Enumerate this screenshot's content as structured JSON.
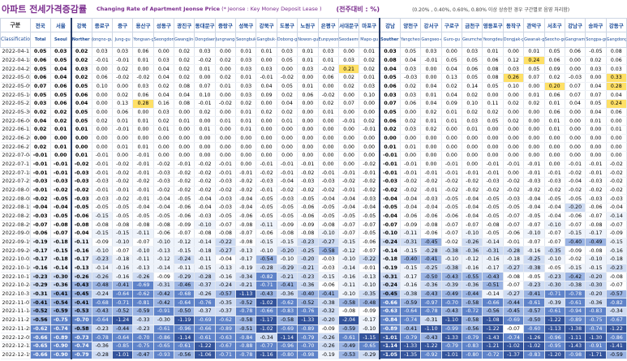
{
  "title": {
    "korean": "아파트 전세가격증감률",
    "english": "Changing Rate of Apartment Jeonse Price",
    "note": "(* Jeonse : Key Money Deposit Lease )",
    "unit": "(전주대비 : %)",
    "description": "(0.20% , 0.40%, 0.60%, 0.80% 이상 상승한 경우 구간별로 음영 처리함)"
  },
  "header": {
    "gubun": "구분",
    "classification": "Classification",
    "regions": [
      {
        "ko": "전국",
        "en": "Total"
      },
      {
        "ko": "서울",
        "en": "Seoul"
      },
      {
        "ko": "강북",
        "en": "Norther n Seoul"
      },
      {
        "ko": "종로구",
        "en": "Jongno-gu"
      },
      {
        "ko": "중구",
        "en": "Jung-gu"
      },
      {
        "ko": "용산구",
        "en": "Yongsan-gu"
      },
      {
        "ko": "성동구",
        "en": "Seongdong-gu"
      },
      {
        "ko": "광진구",
        "en": "Gwangjin-gu"
      },
      {
        "ko": "동대문구",
        "en": "Dongdaemun-gu"
      },
      {
        "ko": "중랑구",
        "en": "Jungnang-gu"
      },
      {
        "ko": "성북구",
        "en": "Seongbuk-gu"
      },
      {
        "ko": "강북구",
        "en": "Gangbuk-gu"
      },
      {
        "ko": "도봉구",
        "en": "Dobong-gu"
      },
      {
        "ko": "노원구",
        "en": "Nowon-gu"
      },
      {
        "ko": "은평구",
        "en": "Eunpyeong-gu"
      },
      {
        "ko": "서대문구",
        "en": "Seodaemun-gu"
      },
      {
        "ko": "마포구",
        "en": "Mapo-gu"
      },
      {
        "ko": "강남",
        "en": "Souther n Seoul"
      },
      {
        "ko": "양천구",
        "en": "Yangcheon-gu"
      },
      {
        "ko": "강서구",
        "en": "Gangseo-gu"
      },
      {
        "ko": "구로구",
        "en": "Guro-gu"
      },
      {
        "ko": "금천구",
        "en": "Geumcheon-gu"
      },
      {
        "ko": "영등포구",
        "en": "Yeongdeungpo-gu"
      },
      {
        "ko": "동작구",
        "en": "Dongjak-gu"
      },
      {
        "ko": "관악구",
        "en": "Gwanak-gu"
      },
      {
        "ko": "서초구",
        "en": "Seocho-gu"
      },
      {
        "ko": "강남구",
        "en": "Gangnam-gu"
      },
      {
        "ko": "송파구",
        "en": "Songpa-gu"
      },
      {
        "ko": "강동구",
        "en": "Gangdong-gu"
      }
    ]
  },
  "rows": [
    {
      "date": "2022-04-11",
      "values": [
        0.05,
        0.03,
        0.02,
        0.03,
        0.03,
        0.06,
        0.0,
        0.02,
        0.03,
        0.0,
        0.01,
        0.01,
        0.03,
        0.01,
        0.03,
        0.0,
        0.01,
        0.03,
        0.05,
        0.03,
        0.0,
        0.03,
        0.01,
        0.0,
        0.01,
        0.05,
        0.06,
        -0.05,
        0.08
      ]
    },
    {
      "date": "2022-04-18",
      "values": [
        0.06,
        0.05,
        0.02,
        -0.01,
        -0.01,
        0.01,
        0.03,
        0.02,
        -0.02,
        0.02,
        0.03,
        0.0,
        0.05,
        0.01,
        0.01,
        0.03,
        0.02,
        0.08,
        0.04,
        -0.01,
        0.05,
        0.05,
        0.06,
        0.12,
        0.24,
        0.06,
        0.0,
        0.02,
        0.06
      ]
    },
    {
      "date": "2022-04-25",
      "values": [
        0.05,
        0.04,
        0.03,
        0.0,
        0.02,
        0.0,
        0.04,
        0.02,
        0.01,
        0.0,
        0.03,
        0.03,
        0.0,
        0.03,
        -0.02,
        0.21,
        0.02,
        0.04,
        0.03,
        0.0,
        0.04,
        0.06,
        0.08,
        0.03,
        0.05,
        0.09,
        0.0,
        0.03,
        0.03
      ]
    },
    {
      "date": "2022-05-02",
      "values": [
        0.06,
        0.04,
        0.02,
        0.06,
        -0.02,
        -0.02,
        0.04,
        0.02,
        0.0,
        0.02,
        0.01,
        -0.01,
        -0.02,
        0.0,
        0.06,
        0.02,
        0.01,
        0.05,
        -0.03,
        0.0,
        0.13,
        0.05,
        0.08,
        0.26,
        0.07,
        0.02,
        -0.03,
        0.0,
        0.33
      ]
    },
    {
      "date": "2022-05-09",
      "values": [
        0.07,
        0.06,
        0.05,
        0.1,
        0.0,
        0.03,
        0.02,
        0.08,
        0.07,
        0.01,
        0.03,
        0.04,
        0.05,
        0.01,
        0.0,
        0.02,
        0.03,
        0.06,
        0.02,
        0.04,
        0.02,
        0.14,
        0.05,
        0.1,
        0.0,
        0.2,
        0.07,
        0.04,
        0.28
      ]
    },
    {
      "date": "2022-05-16",
      "values": [
        0.05,
        0.05,
        0.06,
        0.0,
        0.02,
        0.06,
        0.04,
        0.04,
        0.1,
        0.0,
        0.03,
        0.09,
        0.02,
        0.06,
        -0.02,
        0.0,
        0.1,
        0.03,
        0.03,
        0.01,
        0.04,
        0.02,
        0.0,
        0.0,
        0.01,
        0.06,
        0.07,
        0.07,
        0.04
      ]
    },
    {
      "date": "2022-05-23",
      "values": [
        0.03,
        0.06,
        0.04,
        0.0,
        0.13,
        0.28,
        0.16,
        0.08,
        -0.01,
        -0.02,
        0.02,
        0.0,
        0.04,
        0.0,
        0.02,
        0.07,
        0.0,
        0.07,
        0.06,
        0.04,
        0.09,
        0.1,
        0.11,
        0.02,
        0.02,
        0.01,
        0.04,
        0.05,
        0.24
      ]
    },
    {
      "date": "2022-05-30",
      "values": [
        0.02,
        0.02,
        0.05,
        0.0,
        0.06,
        0.0,
        0.03,
        0.0,
        0.02,
        0.0,
        0.01,
        0.02,
        0.02,
        0.0,
        0.01,
        0.0,
        0.0,
        0.05,
        0.0,
        0.02,
        0.01,
        0.02,
        0.02,
        0.0,
        0.0,
        0.06,
        0.0,
        0.04,
        0.06
      ]
    },
    {
      "date": "2022-06-06",
      "values": [
        0.04,
        0.02,
        0.05,
        0.02,
        0.01,
        0.01,
        0.02,
        0.01,
        0.0,
        0.01,
        0.01,
        0.0,
        0.01,
        0.0,
        0.0,
        -0.01,
        0.02,
        0.06,
        0.02,
        0.01,
        0.01,
        0.03,
        0.05,
        0.02,
        0.0,
        0.01,
        0.0,
        0.01,
        0.0
      ]
    },
    {
      "date": "2022-06-13",
      "values": [
        0.02,
        0.01,
        0.01,
        0.0,
        -0.01,
        0.0,
        0.01,
        0.0,
        0.01,
        0.0,
        0.01,
        0.0,
        0.0,
        0.0,
        0.0,
        0.0,
        -0.01,
        0.02,
        0.03,
        0.02,
        0.0,
        0.01,
        0.0,
        0.0,
        0.0,
        0.01,
        0.0,
        0.0,
        0.01
      ]
    },
    {
      "date": "2022-06-20",
      "values": [
        0.0,
        0.0,
        0.0,
        0.0,
        0.0,
        0.0,
        0.0,
        0.0,
        0.0,
        0.0,
        0.0,
        0.0,
        0.0,
        0.0,
        0.0,
        0.0,
        0.0,
        0.0,
        0.0,
        0.0,
        0.0,
        0.0,
        0.0,
        0.0,
        0.0,
        0.0,
        0.0,
        0.0,
        0.0
      ]
    },
    {
      "date": "2022-06-27",
      "values": [
        0.02,
        0.01,
        0.0,
        0.0,
        0.01,
        0.01,
        0.0,
        0.0,
        0.0,
        0.0,
        0.0,
        0.0,
        0.0,
        0.0,
        0.0,
        0.0,
        0.0,
        0.01,
        0.01,
        0.0,
        0.0,
        0.0,
        0.0,
        0.0,
        0.0,
        0.0,
        0.0,
        0.0,
        0.0
      ]
    },
    {
      "date": "2022-07-04",
      "values": [
        -0.01,
        0.0,
        0.01,
        -0.01,
        0.0,
        -0.01,
        0.0,
        0.0,
        0.0,
        0.0,
        0.0,
        0.0,
        0.0,
        0.0,
        0.0,
        0.0,
        0.0,
        -0.01,
        0.0,
        0.0,
        0.0,
        0.0,
        0.0,
        0.0,
        0.0,
        0.0,
        0.0,
        0.0,
        0.0
      ]
    },
    {
      "date": "2022-07-11",
      "values": [
        -0.01,
        -0.01,
        -0.02,
        -0.01,
        -0.02,
        -0.01,
        -0.02,
        -0.01,
        -0.02,
        -0.01,
        0.0,
        -0.01,
        -0.01,
        -0.01,
        0.0,
        0.0,
        -0.02,
        -0.01,
        -0.01,
        0.0,
        -0.01,
        0.0,
        -0.01,
        -0.01,
        -0.01,
        0.0,
        -0.01,
        -0.01,
        -0.02
      ]
    },
    {
      "date": "2022-07-18",
      "values": [
        -0.01,
        -0.01,
        -0.03,
        -0.01,
        -0.02,
        -0.01,
        -0.03,
        -0.02,
        -0.02,
        -0.01,
        -0.01,
        -0.02,
        -0.01,
        -0.02,
        -0.01,
        -0.01,
        -0.01,
        -0.01,
        -0.01,
        -0.01,
        -0.01,
        -0.01,
        -0.01,
        0.0,
        -0.01,
        -0.01,
        -0.02,
        -0.01,
        -0.02
      ]
    },
    {
      "date": "2022-07-25",
      "values": [
        -0.03,
        -0.03,
        -0.03,
        -0.03,
        -0.02,
        -0.02,
        -0.03,
        -0.02,
        -0.02,
        -0.03,
        -0.02,
        -0.03,
        -0.04,
        -0.03,
        -0.03,
        -0.02,
        -0.02,
        -0.03,
        -0.02,
        -0.02,
        -0.02,
        -0.02,
        -0.03,
        -0.02,
        -0.03,
        -0.03,
        -0.04,
        -0.03,
        -0.02
      ]
    },
    {
      "date": "2022-08-01",
      "values": [
        -0.01,
        -0.02,
        -0.02,
        -0.01,
        -0.01,
        -0.01,
        -0.02,
        -0.02,
        -0.02,
        -0.02,
        -0.02,
        -0.01,
        -0.02,
        -0.02,
        -0.02,
        -0.01,
        -0.02,
        -0.02,
        -0.02,
        -0.01,
        -0.02,
        -0.02,
        -0.02,
        -0.02,
        -0.02,
        -0.02,
        -0.02,
        -0.02,
        -0.02
      ]
    },
    {
      "date": "2022-08-08",
      "values": [
        -0.02,
        -0.05,
        -0.03,
        -0.03,
        -0.02,
        -0.01,
        -0.04,
        -0.05,
        -0.04,
        -0.03,
        -0.04,
        -0.05,
        -0.03,
        -0.05,
        -0.04,
        -0.04,
        -0.03,
        -0.04,
        -0.04,
        -0.03,
        -0.05,
        -0.04,
        -0.05,
        -0.03,
        -0.04,
        -0.05,
        -0.05,
        -0.03,
        -0.03
      ]
    },
    {
      "date": "2022-08-15",
      "values": [
        -0.04,
        -0.04,
        -0.05,
        -0.05,
        -0.05,
        -0.04,
        -0.04,
        -0.06,
        -0.04,
        -0.03,
        -0.04,
        -0.05,
        -0.05,
        -0.06,
        -0.05,
        -0.04,
        -0.04,
        -0.05,
        -0.04,
        -0.04,
        -0.05,
        -0.04,
        -0.05,
        -0.05,
        -0.04,
        -0.04,
        -0.2,
        -0.06,
        -0.04
      ]
    },
    {
      "date": "2022-08-22",
      "values": [
        -0.03,
        -0.05,
        -0.06,
        -0.15,
        -0.05,
        -0.05,
        -0.05,
        -0.06,
        -0.03,
        -0.05,
        -0.06,
        -0.05,
        -0.05,
        -0.06,
        -0.05,
        -0.05,
        -0.05,
        -0.04,
        -0.06,
        -0.06,
        -0.06,
        -0.04,
        -0.05,
        -0.07,
        -0.05,
        -0.04,
        -0.06,
        -0.07,
        -0.14
      ]
    },
    {
      "date": "2022-08-29",
      "values": [
        -0.07,
        -0.08,
        -0.08,
        -0.08,
        -0.08,
        -0.08,
        -0.08,
        -0.09,
        -0.1,
        -0.07,
        -0.08,
        -0.11,
        -0.09,
        -0.09,
        -0.08,
        -0.07,
        -0.07,
        -0.07,
        -0.09,
        -0.08,
        -0.07,
        -0.07,
        -0.08,
        -0.07,
        -0.07,
        -0.1,
        -0.07,
        -0.08,
        -0.07
      ]
    },
    {
      "date": "2022-09-05",
      "values": [
        -0.06,
        -0.07,
        -0.04,
        -0.15,
        -0.15,
        -0.11,
        -0.06,
        -0.07,
        -0.08,
        -0.08,
        -0.07,
        -0.06,
        -0.08,
        -0.08,
        -0.1,
        -0.07,
        -0.05,
        -0.1,
        -0.11,
        -0.06,
        -0.07,
        -0.1,
        -0.05,
        -0.06,
        -0.1,
        -0.07,
        -0.15,
        -0.17,
        -0.09
      ]
    },
    {
      "date": "2022-09-19",
      "values": [
        -0.19,
        -0.18,
        -0.11,
        -0.09,
        -0.1,
        -0.07,
        -0.1,
        -0.12,
        -0.14,
        -0.22,
        -0.08,
        -0.15,
        -0.15,
        -0.23,
        -0.27,
        -0.15,
        -0.06,
        -0.24,
        -0.31,
        -0.45,
        -0.02,
        -0.26,
        -0.14,
        -0.01,
        -0.07,
        -0.07,
        -0.4,
        -0.49,
        -0.15
      ]
    },
    {
      "date": "2022-09-26",
      "values": [
        -0.17,
        -0.15,
        -0.16,
        -0.1,
        -0.07,
        -0.1,
        -0.13,
        -0.15,
        -0.18,
        -0.27,
        -0.13,
        -0.1,
        -0.2,
        -0.25,
        -0.58,
        -0.12,
        -0.07,
        -0.14,
        -0.15,
        -0.28,
        -0.38,
        -0.36,
        -0.31,
        -0.28,
        -0.16,
        -0.35,
        -0.09,
        -0.08,
        -0.16
      ]
    },
    {
      "date": "2022-10-03",
      "values": [
        -0.17,
        -0.18,
        -0.17,
        -0.23,
        -0.18,
        -0.11,
        -0.12,
        -0.24,
        -0.11,
        -0.04,
        -0.17,
        -0.54,
        -0.1,
        -0.2,
        -0.03,
        -0.1,
        -0.22,
        -0.18,
        -0.4,
        -0.41,
        -0.1,
        -0.12,
        -0.16,
        -0.18,
        -0.25,
        -0.1,
        -0.02,
        -0.1,
        -0.18
      ]
    },
    {
      "date": "2022-10-10",
      "values": [
        -0.16,
        -0.14,
        -0.13,
        -0.14,
        -0.16,
        -0.13,
        -0.14,
        -0.11,
        -0.15,
        -0.13,
        -0.19,
        -0.28,
        -0.29,
        -0.21,
        -0.03,
        -0.14,
        -0.01,
        -0.19,
        -0.15,
        -0.25,
        -0.38,
        -0.16,
        -0.17,
        -0.27,
        -0.38,
        -0.05,
        -0.15,
        -0.15,
        -0.23
      ]
    },
    {
      "date": "2022-10-17",
      "values": [
        -0.23,
        -0.3,
        -0.26,
        -0.26,
        -0.16,
        -0.26,
        -0.09,
        -0.29,
        -0.28,
        -0.16,
        -0.34,
        -0.82,
        -0.21,
        -0.23,
        -0.15,
        -0.16,
        -0.13,
        -0.31,
        -0.17,
        -0.5,
        -0.43,
        -0.55,
        -0.43,
        -0.08,
        -0.05,
        -0.23,
        -0.42,
        -0.2,
        -0.08
      ]
    },
    {
      "date": "2022-10-24",
      "values": [
        -0.29,
        -0.36,
        -0.43,
        -0.48,
        -0.41,
        -0.69,
        -0.31,
        -0.46,
        -0.37,
        -0.24,
        -0.21,
        -0.71,
        -0.41,
        -0.36,
        -0.06,
        -0.11,
        -0.1,
        -0.24,
        -0.16,
        -0.36,
        -0.39,
        -0.36,
        -0.51,
        -0.07,
        -0.23,
        -0.3,
        -0.38,
        -0.3,
        -0.07
      ]
    },
    {
      "date": "2022-10-31",
      "values": [
        -0.31,
        -0.41,
        -0.45,
        -0.24,
        -0.64,
        -0.62,
        -0.42,
        -0.68,
        -0.26,
        -0.57,
        -1.13,
        -0.43,
        -0.36,
        -0.4,
        -0.41,
        -0.1,
        -0.35,
        -0.45,
        -0.38,
        -0.43,
        -0.49,
        -0.44,
        -0.14,
        -0.27,
        -0.41,
        -0.71,
        -0.78,
        -0.2,
        -0.57
      ]
    },
    {
      "date": "2022-11-07",
      "values": [
        -0.41,
        -0.54,
        -0.41,
        -0.68,
        -0.71,
        -0.81,
        -0.42,
        -0.64,
        -0.76,
        -0.35,
        -0.52,
        -1.02,
        -0.62,
        -0.52,
        -0.38,
        -0.58,
        -0.48,
        -0.66,
        -0.59,
        -0.97,
        -0.7,
        -0.58,
        -0.66,
        -0.44,
        -0.61,
        -0.39,
        -0.61,
        -0.36,
        -0.82
      ]
    },
    {
      "date": "2022-11-14",
      "values": [
        -0.52,
        -0.59,
        -0.53,
        -0.43,
        -0.52,
        -0.59,
        -0.91,
        -0.5,
        -0.37,
        -0.37,
        -0.78,
        -0.66,
        -0.83,
        -0.76,
        -0.32,
        -0.08,
        -0.09,
        -0.63,
        -0.64,
        -0.78,
        -0.43,
        -0.72,
        -0.56,
        -0.45,
        -0.57,
        -0.61,
        -0.94,
        -0.83,
        -0.34
      ]
    },
    {
      "date": "2022-11-21",
      "values": [
        -0.56,
        -0.75,
        -0.7,
        -0.64,
        -1.24,
        -0.33,
        -0.3,
        -1.19,
        -0.69,
        -0.62,
        -0.58,
        -1.17,
        -0.58,
        -1.33,
        -0.2,
        -2.04,
        -0.17,
        -0.84,
        -0.74,
        -0.31,
        -1.1,
        -0.58,
        -1.08,
        -0.69,
        -0.5,
        -1.22,
        -0.89,
        -0.75,
        -0.67
      ]
    },
    {
      "date": "2022-11-28",
      "values": [
        -0.62,
        -0.74,
        -0.58,
        -0.23,
        -0.44,
        -0.23,
        -0.61,
        -0.96,
        -0.66,
        -0.89,
        -0.51,
        -1.02,
        -0.69,
        -0.89,
        -0.09,
        -0.59,
        -0.1,
        -0.89,
        -0.41,
        -1.1,
        -0.99,
        -0.56,
        -1.22,
        -0.07,
        -0.6,
        -1.13,
        -1.38,
        -0.74,
        -1.22
      ]
    },
    {
      "date": "2022-12-05",
      "values": [
        -0.66,
        -0.89,
        -0.73,
        -0.78,
        -0.64,
        -0.7,
        -0.86,
        -1.14,
        -0.61,
        -0.63,
        -0.84,
        -0.34,
        -1.14,
        -0.79,
        -0.26,
        -0.61,
        -1.15,
        -1.01,
        -0.79,
        -0.43,
        -1.33,
        -0.79,
        -1.43,
        -0.74,
        -1.26,
        -0.96,
        -1.11,
        -1.3,
        -0.86
      ]
    },
    {
      "date": "2022-12-12",
      "values": [
        -0.65,
        -0.9,
        -0.74,
        -0.36,
        -0.85,
        -0.75,
        -0.65,
        -0.61,
        -1.22,
        -0.67,
        -0.88,
        -0.77,
        -0.96,
        -0.7,
        -0.26,
        -0.49,
        -0.65,
        -1.14,
        -1.33,
        -1.22,
        -0.79,
        -0.83,
        -1.21,
        -1.02,
        -1.02,
        -0.95,
        -1.43,
        -0.91,
        -1.41
      ]
    },
    {
      "date": "2022-12-19",
      "values": [
        -0.66,
        -0.9,
        -0.79,
        -0.28,
        -1.01,
        -0.47,
        -0.93,
        -0.56,
        -1.06,
        -0.71,
        -0.78,
        -1.16,
        -0.8,
        -0.98,
        -0.19,
        -0.53,
        -0.29,
        -1.05,
        -1.35,
        -0.92,
        -1.01,
        -0.8,
        -0.72,
        -1.37,
        -0.83,
        -1.2,
        -0.98,
        -1.71,
        -0.59
      ]
    }
  ],
  "colors": {
    "pos1": "#fff2b3",
    "pos2": "#ffe066",
    "neg_light": "#eef3fb",
    "neg_mid": "#cfdcf3",
    "neg_strong": "#9bb4e3",
    "neg_dark": "#5f83c9",
    "neg_darkest": "#34549c",
    "title": "#7b2d8e",
    "header": "#1f4e9a"
  }
}
